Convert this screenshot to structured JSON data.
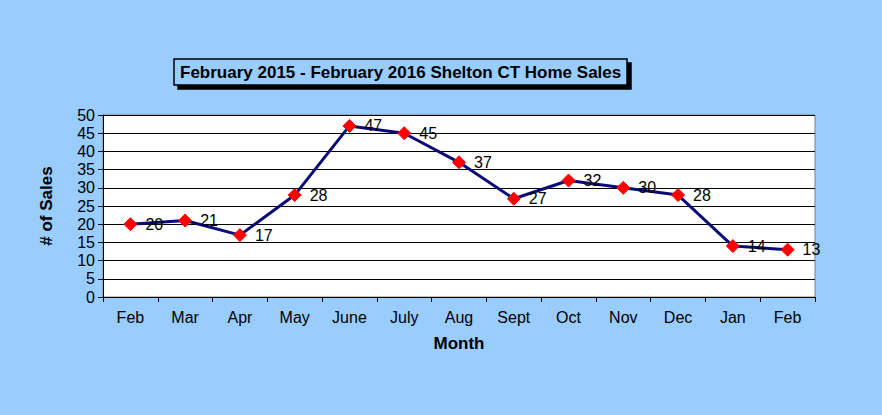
{
  "chart_data": {
    "type": "line",
    "title": "February 2015 - February 2016 Shelton CT Home Sales",
    "x_label": "Month",
    "y_label": "# of Sales",
    "categories": [
      "Feb",
      "Mar",
      "Apr",
      "May",
      "June",
      "July",
      "Aug",
      "Sept",
      "Oct",
      "Nov",
      "Dec",
      "Jan",
      "Feb"
    ],
    "values": [
      20,
      21,
      17,
      28,
      47,
      45,
      37,
      27,
      32,
      30,
      28,
      14,
      13
    ],
    "color": "#0a0a78",
    "marker": "diamond",
    "data_labels": true,
    "ylim": [
      0,
      50
    ],
    "yticks": [
      0,
      5,
      10,
      15,
      20,
      25,
      30,
      35,
      40,
      45,
      50
    ],
    "grid": true
  }
}
